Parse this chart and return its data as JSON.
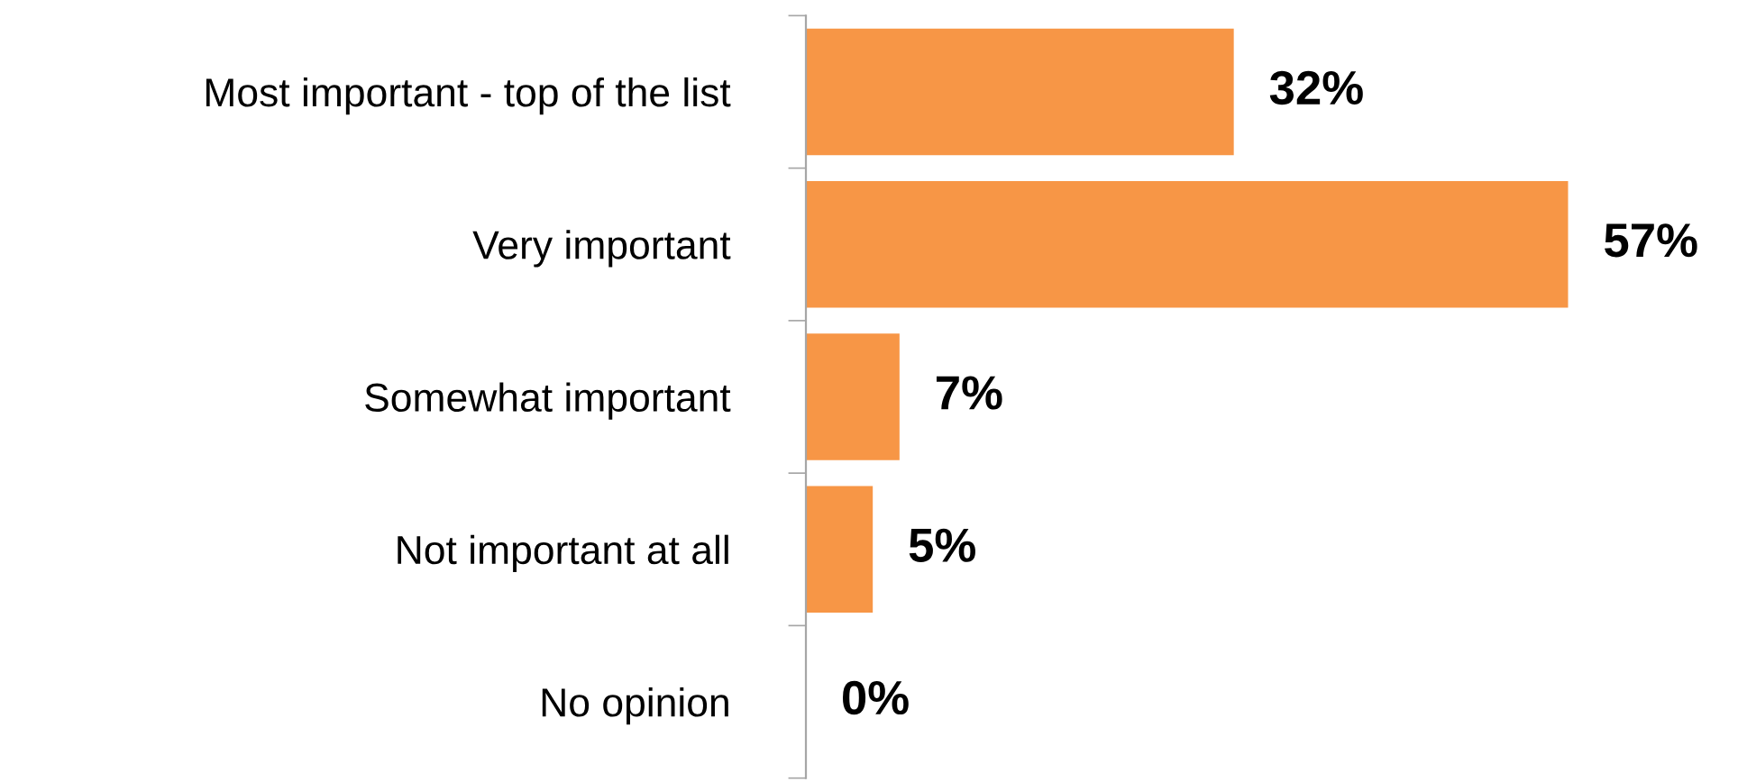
{
  "chart_data": {
    "type": "bar",
    "orientation": "horizontal",
    "categories": [
      "Most important - top of the list",
      "Very important",
      "Somewhat important",
      "Not important at all",
      "No opinion"
    ],
    "values": [
      32,
      57,
      7,
      5,
      0
    ],
    "value_labels": [
      "32%",
      "57%",
      "7%",
      "5%",
      "0%"
    ],
    "color": "#f79646",
    "tick_labels": "y",
    "grid": false,
    "legend": false
  }
}
